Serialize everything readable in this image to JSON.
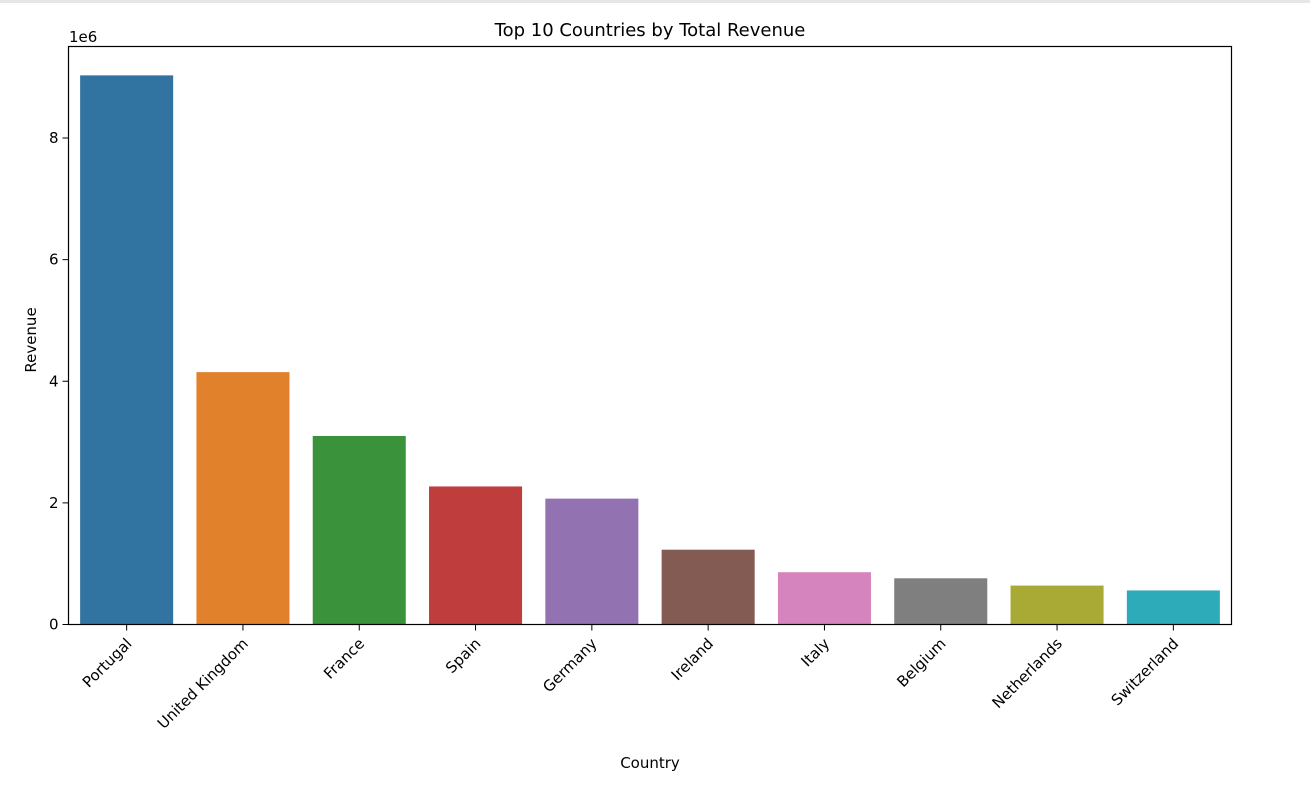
{
  "chart_data": {
    "type": "bar",
    "title": "Top 10 Countries by Total Revenue",
    "xlabel": "Country",
    "ylabel": "Revenue",
    "offset_label": "1e6",
    "categories": [
      "Portugal",
      "United Kingdom",
      "France",
      "Spain",
      "Germany",
      "Ireland",
      "Italy",
      "Belgium",
      "Netherlands",
      "Switzerland"
    ],
    "values": [
      9030000,
      4150000,
      3100000,
      2270000,
      2070000,
      1230000,
      860000,
      760000,
      640000,
      560000
    ],
    "colors": [
      "#3274a1",
      "#e1812c",
      "#3a923a",
      "#c03d3e",
      "#9372b2",
      "#845b53",
      "#d684bd",
      "#7f7f7f",
      "#a9aa35",
      "#2eabb8"
    ],
    "yticks": [
      0,
      2000000,
      4000000,
      6000000,
      8000000
    ],
    "ytick_labels": [
      "0",
      "2",
      "4",
      "6",
      "8"
    ],
    "ylim": [
      0,
      9500000
    ],
    "grid": false,
    "legend": "none"
  }
}
